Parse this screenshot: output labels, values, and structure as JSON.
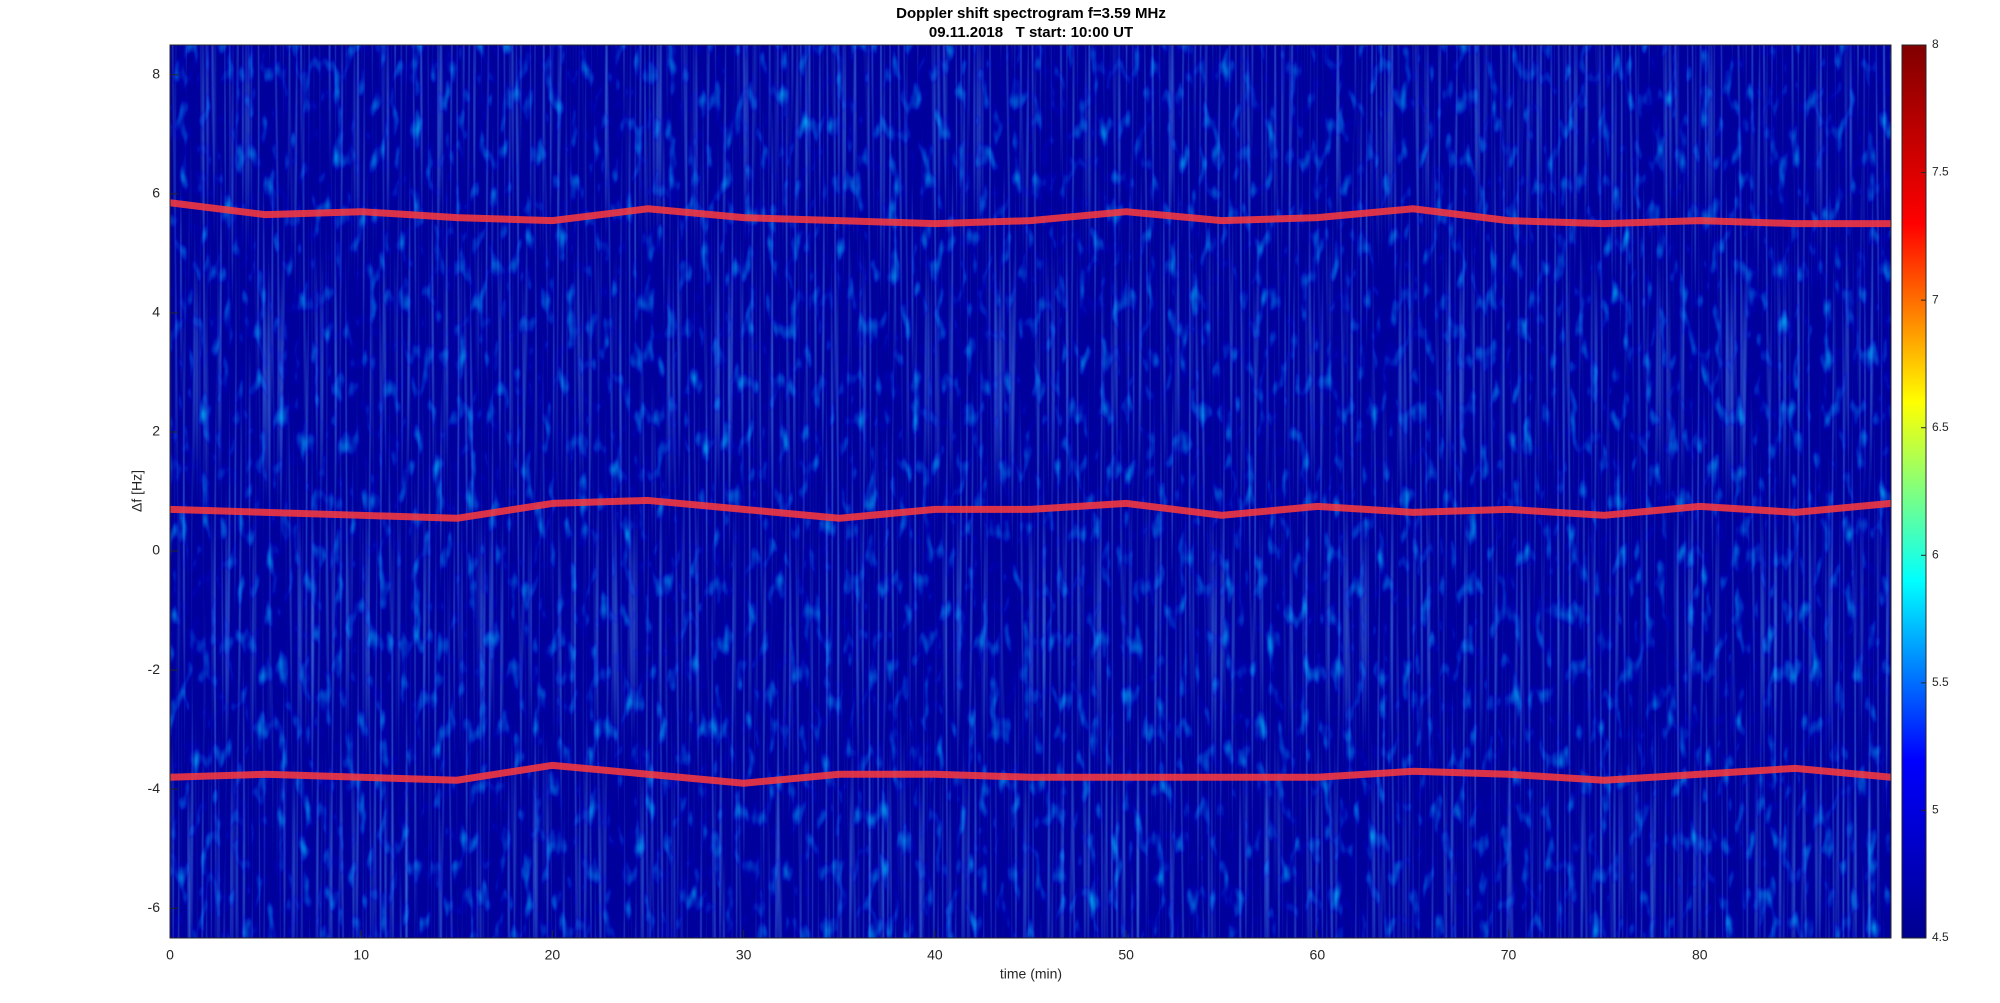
{
  "chart_data": {
    "type": "spectrogram",
    "title": "Doppler shift spectrogram f=3.59 MHz",
    "subtitle": "09.11.2018   T start: 10:00 UT",
    "x_label": "time (min)",
    "y_label": "Δf [Hz]",
    "xlim": [
      0,
      90
    ],
    "xticks": [
      0,
      10,
      20,
      30,
      40,
      50,
      60,
      70,
      80
    ],
    "ylim": [
      -6.5,
      8.5
    ],
    "yticks": [
      -6,
      -4,
      -2,
      0,
      2,
      4,
      6,
      8
    ],
    "clim": [
      4.5,
      8
    ],
    "cticks": [
      4.5,
      5,
      5.5,
      6,
      6.5,
      7,
      7.5,
      8
    ],
    "colormap": [
      "#00008f",
      "#0000ff",
      "#00ffff",
      "#ffff00",
      "#ff0000",
      "#800000"
    ],
    "background": "#00009c",
    "x": [
      0,
      5,
      10,
      15,
      20,
      25,
      30,
      35,
      40,
      45,
      50,
      55,
      60,
      65,
      70,
      75,
      80,
      85,
      90
    ],
    "series": [
      {
        "color": "#ff3a3a",
        "values": [
          5.85,
          5.65,
          5.7,
          5.6,
          5.55,
          5.75,
          5.6,
          5.55,
          5.5,
          5.55,
          5.7,
          5.55,
          5.6,
          5.75,
          5.55,
          5.5,
          5.55,
          5.5,
          5.5
        ]
      },
      {
        "color": "#ff3a3a",
        "values": [
          0.7,
          0.65,
          0.6,
          0.55,
          0.8,
          0.85,
          0.7,
          0.55,
          0.7,
          0.7,
          0.8,
          0.6,
          0.75,
          0.65,
          0.7,
          0.6,
          0.75,
          0.65,
          0.8
        ]
      },
      {
        "color": "#ff3a3a",
        "values": [
          -3.8,
          -3.75,
          -3.8,
          -3.85,
          -3.6,
          -3.75,
          -3.9,
          -3.75,
          -3.75,
          -3.8,
          -3.8,
          -3.8,
          -3.8,
          -3.7,
          -3.75,
          -3.85,
          -3.75,
          -3.65,
          -3.8
        ]
      }
    ]
  }
}
